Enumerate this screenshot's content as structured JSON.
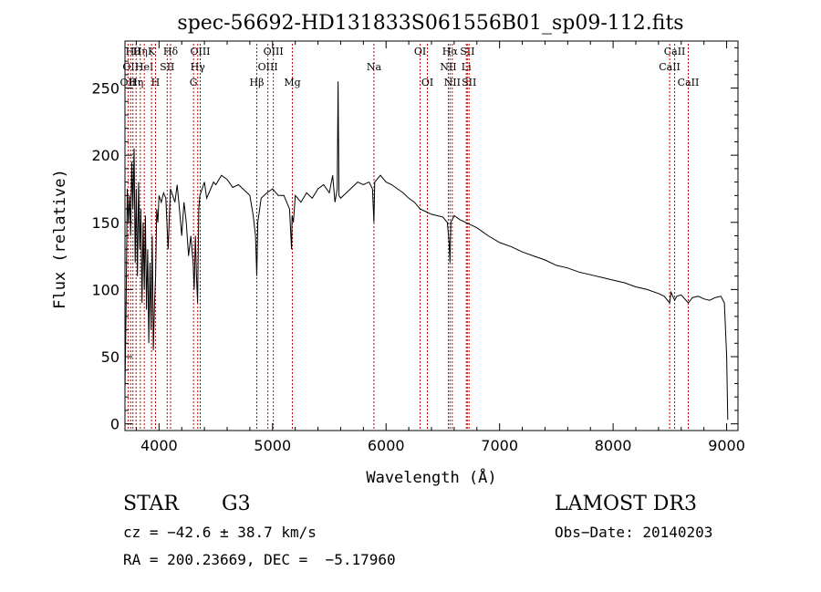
{
  "chart_data": {
    "type": "line",
    "title": "spec-56692-HD131833S061556B01_sp09-112.fits",
    "xlabel": "Wavelength (Å)",
    "ylabel": "Flux (relative)",
    "xlim": [
      3700,
      9100
    ],
    "ylim": [
      -5,
      285
    ],
    "xticks": [
      4000,
      5000,
      6000,
      7000,
      8000,
      9000
    ],
    "yticks": [
      0,
      50,
      100,
      150,
      200,
      250
    ],
    "xtick_labels": [
      "4000",
      "5000",
      "6000",
      "7000",
      "8000",
      "9000"
    ],
    "ytick_labels": [
      "0",
      "50",
      "100",
      "150",
      "200",
      "250"
    ],
    "grid": false,
    "series": [
      {
        "name": "spectrum",
        "x": [
          3700,
          3710,
          3720,
          3730,
          3740,
          3750,
          3760,
          3770,
          3780,
          3790,
          3800,
          3810,
          3820,
          3830,
          3840,
          3850,
          3860,
          3870,
          3880,
          3890,
          3900,
          3910,
          3920,
          3930,
          3940,
          3950,
          3960,
          3970,
          3980,
          3990,
          4000,
          4020,
          4040,
          4060,
          4080,
          4100,
          4120,
          4140,
          4160,
          4180,
          4200,
          4220,
          4240,
          4260,
          4280,
          4300,
          4310,
          4320,
          4330,
          4340,
          4350,
          4360,
          4380,
          4400,
          4420,
          4440,
          4460,
          4480,
          4500,
          4550,
          4600,
          4650,
          4700,
          4750,
          4800,
          4830,
          4850,
          4861,
          4870,
          4900,
          4950,
          5000,
          5050,
          5100,
          5150,
          5167,
          5172,
          5183,
          5200,
          5250,
          5300,
          5350,
          5400,
          5450,
          5500,
          5530,
          5550,
          5570,
          5577,
          5585,
          5600,
          5650,
          5700,
          5750,
          5800,
          5850,
          5880,
          5893,
          5900,
          5950,
          6000,
          6050,
          6100,
          6150,
          6200,
          6250,
          6300,
          6350,
          6400,
          6450,
          6500,
          6540,
          6555,
          6563,
          6570,
          6600,
          6650,
          6700,
          6750,
          6800,
          6900,
          7000,
          7100,
          7200,
          7300,
          7400,
          7500,
          7600,
          7700,
          7800,
          7900,
          8000,
          8100,
          8200,
          8300,
          8400,
          8450,
          8498,
          8510,
          8542,
          8560,
          8600,
          8662,
          8700,
          8750,
          8800,
          8850,
          8900,
          8950,
          8980,
          9000,
          9010
        ],
        "values": [
          25,
          85,
          175,
          150,
          170,
          140,
          195,
          160,
          205,
          120,
          175,
          110,
          180,
          130,
          160,
          90,
          150,
          100,
          155,
          85,
          130,
          60,
          120,
          70,
          140,
          55,
          90,
          110,
          160,
          150,
          170,
          165,
          172,
          168,
          130,
          175,
          170,
          165,
          178,
          160,
          140,
          165,
          150,
          125,
          140,
          120,
          100,
          140,
          110,
          90,
          160,
          170,
          175,
          180,
          168,
          172,
          176,
          180,
          178,
          185,
          182,
          176,
          178,
          174,
          170,
          155,
          140,
          110,
          150,
          168,
          172,
          175,
          170,
          170,
          160,
          130,
          155,
          150,
          170,
          165,
          172,
          168,
          175,
          178,
          172,
          185,
          165,
          175,
          255,
          170,
          168,
          172,
          176,
          180,
          178,
          180,
          175,
          150,
          180,
          185,
          180,
          178,
          175,
          172,
          168,
          165,
          160,
          158,
          156,
          155,
          154,
          150,
          135,
          120,
          150,
          155,
          152,
          150,
          148,
          146,
          140,
          135,
          132,
          128,
          125,
          122,
          118,
          116,
          113,
          111,
          109,
          107,
          105,
          102,
          100,
          97,
          95,
          90,
          98,
          92,
          95,
          96,
          90,
          94,
          95,
          93,
          92,
          94,
          95,
          90,
          50,
          3
        ]
      }
    ],
    "lines": [
      {
        "wave": 3727,
        "label": "OII",
        "row": 2
      },
      {
        "wave": 3750,
        "label": "OII",
        "row": 1
      },
      {
        "wave": 3770,
        "label": "Hθ",
        "row": 0
      },
      {
        "wave": 3798,
        "label": "Hη",
        "row": 2
      },
      {
        "wave": 3835,
        "label": "Hη",
        "row": 0
      },
      {
        "wave": 3870,
        "label": "HeI",
        "row": 1
      },
      {
        "wave": 3934,
        "label": "K",
        "row": 0
      },
      {
        "wave": 3969,
        "label": "H",
        "row": 2
      },
      {
        "wave": 4072,
        "label": "SII",
        "row": 1
      },
      {
        "wave": 4102,
        "label": "Hδ",
        "row": 0
      },
      {
        "wave": 4304,
        "label": "G",
        "row": 2
      },
      {
        "wave": 4341,
        "label": "Hγ",
        "row": 1
      },
      {
        "wave": 4363,
        "label": "OIII",
        "row": 0
      },
      {
        "wave": 4861,
        "label": "Hβ",
        "row": 2
      },
      {
        "wave": 4959,
        "label": "OIII",
        "row": 1
      },
      {
        "wave": 5007,
        "label": "OIII",
        "row": 0
      },
      {
        "wave": 5175,
        "label": "Mg",
        "row": 2
      },
      {
        "wave": 5893,
        "label": "Na",
        "row": 1
      },
      {
        "wave": 6300,
        "label": "OI",
        "row": 0
      },
      {
        "wave": 6364,
        "label": "OI",
        "row": 2
      },
      {
        "wave": 6548,
        "label": "NII",
        "row": 1
      },
      {
        "wave": 6563,
        "label": "Hα",
        "row": 0
      },
      {
        "wave": 6583,
        "label": "NII",
        "row": 2
      },
      {
        "wave": 6707,
        "label": "Li",
        "row": 1
      },
      {
        "wave": 6716,
        "label": "SII",
        "row": 0
      },
      {
        "wave": 6731,
        "label": "SII",
        "row": 2
      },
      {
        "wave": 8498,
        "label": "CaII",
        "row": 1
      },
      {
        "wave": 8542,
        "label": "CaII",
        "row": 0
      },
      {
        "wave": 8662,
        "label": "CaII",
        "row": 2
      }
    ]
  },
  "info": {
    "object_class": "STAR",
    "subclass": "G3",
    "survey": "LAMOST DR3",
    "cz": "cz = −42.6 ± 38.7 km/s",
    "obs_date": "Obs−Date: 20140203",
    "radec": "RA = 200.23669, DEC =  −5.17960"
  }
}
